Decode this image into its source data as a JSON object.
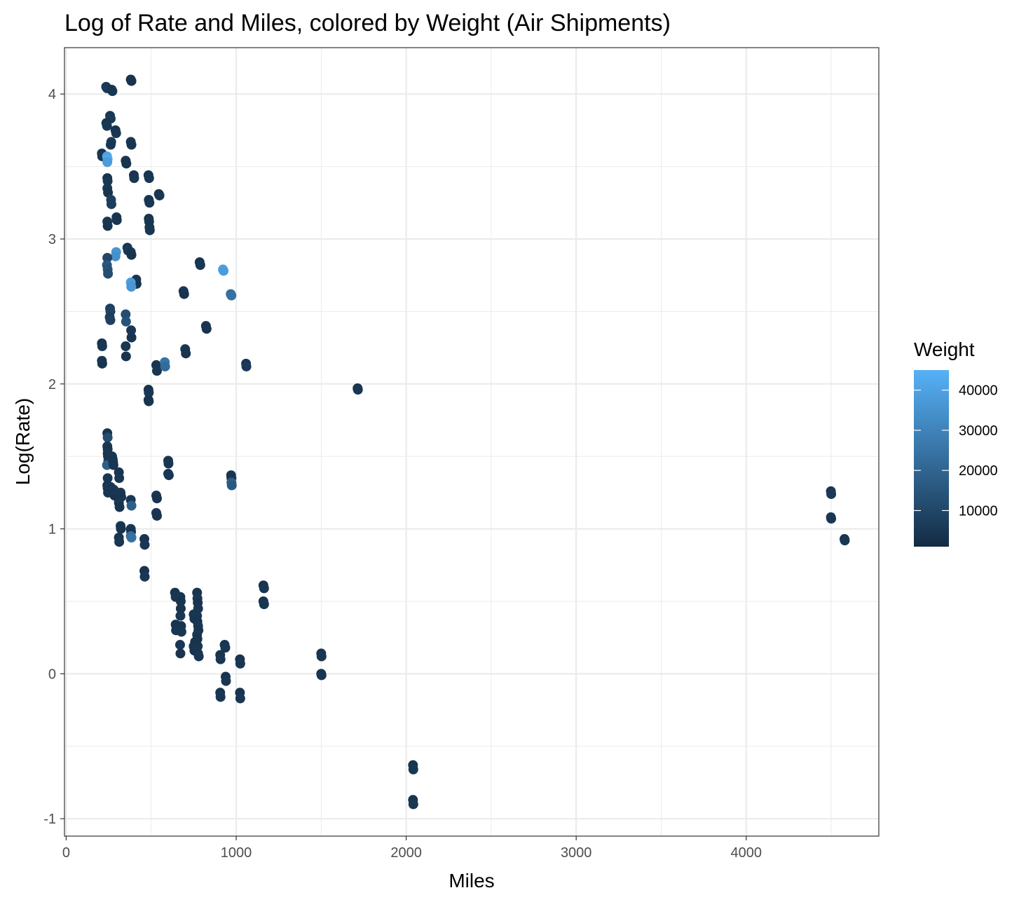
{
  "chart_data": {
    "type": "scatter",
    "title": "Log of Rate and Miles, colored by Weight (Air Shipments)",
    "xlabel": "Miles",
    "ylabel": "Log(Rate)",
    "xlim": [
      -10,
      4780
    ],
    "ylim": [
      -1.12,
      4.32
    ],
    "x_ticks": [
      0,
      1000,
      2000,
      3000,
      4000
    ],
    "x_tick_labels": [
      "0",
      "1000",
      "2000",
      "3000",
      "4000"
    ],
    "y_ticks": [
      -1,
      0,
      1,
      2,
      3,
      4
    ],
    "y_tick_labels": [
      "-1",
      "0",
      "1",
      "2",
      "3",
      "4"
    ],
    "grid": true,
    "legend": {
      "title": "Weight",
      "position": "right",
      "type": "colorbar",
      "range": [
        1000,
        45000
      ],
      "ticks": [
        10000,
        20000,
        30000,
        40000
      ],
      "tick_labels": [
        "10000",
        "20000",
        "30000",
        "40000"
      ],
      "color_low": "#132B43",
      "color_high": "#56B1F7"
    },
    "colors": {
      "panel_border": "#333333",
      "grid": "#ebebeb",
      "tick_text": "#4d4d4d"
    },
    "points": [
      [
        235,
        4.05,
        5000
      ],
      [
        240,
        4.04,
        6000
      ],
      [
        268,
        4.03,
        4000
      ],
      [
        272,
        4.02,
        5000
      ],
      [
        380,
        4.1,
        3000
      ],
      [
        384,
        4.09,
        4000
      ],
      [
        258,
        3.85,
        5000
      ],
      [
        262,
        3.83,
        6000
      ],
      [
        236,
        3.8,
        4000
      ],
      [
        240,
        3.78,
        5000
      ],
      [
        290,
        3.75,
        4000
      ],
      [
        294,
        3.73,
        5000
      ],
      [
        265,
        3.67,
        6000
      ],
      [
        262,
        3.65,
        5000
      ],
      [
        380,
        3.67,
        5000
      ],
      [
        384,
        3.65,
        4000
      ],
      [
        210,
        3.59,
        4000
      ],
      [
        212,
        3.57,
        5000
      ],
      [
        240,
        3.57,
        40000
      ],
      [
        244,
        3.55,
        42000
      ],
      [
        242,
        3.53,
        38000
      ],
      [
        350,
        3.54,
        5000
      ],
      [
        354,
        3.52,
        4000
      ],
      [
        242,
        3.42,
        4000
      ],
      [
        244,
        3.4,
        5000
      ],
      [
        398,
        3.44,
        4000
      ],
      [
        400,
        3.42,
        5000
      ],
      [
        484,
        3.44,
        4000
      ],
      [
        488,
        3.42,
        5000
      ],
      [
        242,
        3.35,
        5000
      ],
      [
        246,
        3.32,
        4000
      ],
      [
        545,
        3.31,
        4000
      ],
      [
        549,
        3.3,
        5000
      ],
      [
        264,
        3.27,
        8000
      ],
      [
        266,
        3.24,
        7000
      ],
      [
        486,
        3.27,
        4000
      ],
      [
        490,
        3.25,
        5000
      ],
      [
        296,
        3.15,
        5000
      ],
      [
        298,
        3.13,
        4000
      ],
      [
        242,
        3.12,
        5000
      ],
      [
        244,
        3.09,
        4000
      ],
      [
        486,
        3.14,
        4000
      ],
      [
        488,
        3.12,
        5000
      ],
      [
        490,
        3.08,
        4000
      ],
      [
        492,
        3.06,
        5000
      ],
      [
        360,
        2.94,
        5000
      ],
      [
        364,
        2.92,
        6000
      ],
      [
        380,
        2.91,
        5000
      ],
      [
        384,
        2.89,
        4000
      ],
      [
        294,
        2.91,
        36000
      ],
      [
        290,
        2.88,
        34000
      ],
      [
        242,
        2.87,
        10000
      ],
      [
        240,
        2.82,
        15000
      ],
      [
        244,
        2.79,
        14000
      ],
      [
        246,
        2.76,
        12000
      ],
      [
        785,
        2.84,
        4000
      ],
      [
        789,
        2.82,
        5000
      ],
      [
        922,
        2.79,
        40000
      ],
      [
        926,
        2.78,
        38000
      ],
      [
        412,
        2.72,
        5000
      ],
      [
        414,
        2.69,
        4000
      ],
      [
        380,
        2.7,
        38000
      ],
      [
        383,
        2.67,
        36000
      ],
      [
        690,
        2.64,
        5000
      ],
      [
        694,
        2.62,
        4000
      ],
      [
        968,
        2.62,
        22000
      ],
      [
        972,
        2.61,
        24000
      ],
      [
        258,
        2.52,
        8000
      ],
      [
        260,
        2.5,
        9000
      ],
      [
        256,
        2.46,
        7000
      ],
      [
        260,
        2.44,
        8000
      ],
      [
        350,
        2.48,
        12000
      ],
      [
        352,
        2.43,
        14000
      ],
      [
        382,
        2.37,
        5000
      ],
      [
        384,
        2.32,
        4000
      ],
      [
        822,
        2.4,
        5000
      ],
      [
        826,
        2.38,
        4000
      ],
      [
        210,
        2.28,
        4000
      ],
      [
        212,
        2.26,
        5000
      ],
      [
        350,
        2.26,
        5000
      ],
      [
        352,
        2.19,
        4000
      ],
      [
        700,
        2.24,
        5000
      ],
      [
        704,
        2.21,
        4000
      ],
      [
        210,
        2.16,
        5000
      ],
      [
        212,
        2.14,
        4000
      ],
      [
        530,
        2.13,
        4000
      ],
      [
        534,
        2.09,
        5000
      ],
      [
        580,
        2.15,
        25000
      ],
      [
        582,
        2.12,
        22000
      ],
      [
        1058,
        2.14,
        5000
      ],
      [
        1060,
        2.12,
        6000
      ],
      [
        484,
        1.96,
        4000
      ],
      [
        486,
        1.94,
        5000
      ],
      [
        484,
        1.89,
        5000
      ],
      [
        486,
        1.88,
        4000
      ],
      [
        1714,
        1.97,
        4000
      ],
      [
        1716,
        1.96,
        5000
      ],
      [
        242,
        1.66,
        4000
      ],
      [
        244,
        1.63,
        12000
      ],
      [
        242,
        1.57,
        5000
      ],
      [
        244,
        1.55,
        4000
      ],
      [
        244,
        1.52,
        5000
      ],
      [
        246,
        1.5,
        4000
      ],
      [
        248,
        1.47,
        5000
      ],
      [
        240,
        1.44,
        18000
      ],
      [
        270,
        1.5,
        5000
      ],
      [
        274,
        1.48,
        4000
      ],
      [
        276,
        1.46,
        5000
      ],
      [
        278,
        1.44,
        5000
      ],
      [
        600,
        1.47,
        4000
      ],
      [
        602,
        1.45,
        5000
      ],
      [
        600,
        1.38,
        4000
      ],
      [
        604,
        1.37,
        5000
      ],
      [
        310,
        1.39,
        4000
      ],
      [
        312,
        1.35,
        5000
      ],
      [
        970,
        1.37,
        5000
      ],
      [
        972,
        1.35,
        4000
      ],
      [
        972,
        1.32,
        18000
      ],
      [
        974,
        1.3,
        16000
      ],
      [
        244,
        1.35,
        5000
      ],
      [
        242,
        1.3,
        4000
      ],
      [
        244,
        1.28,
        5000
      ],
      [
        246,
        1.25,
        4000
      ],
      [
        260,
        1.29,
        6000
      ],
      [
        262,
        1.26,
        5000
      ],
      [
        268,
        1.28,
        4000
      ],
      [
        272,
        1.25,
        5000
      ],
      [
        280,
        1.27,
        5000
      ],
      [
        284,
        1.23,
        4000
      ],
      [
        296,
        1.24,
        5000
      ],
      [
        300,
        1.22,
        4000
      ],
      [
        320,
        1.25,
        5000
      ],
      [
        324,
        1.22,
        4000
      ],
      [
        310,
        1.18,
        5000
      ],
      [
        314,
        1.15,
        4000
      ],
      [
        530,
        1.23,
        5000
      ],
      [
        534,
        1.21,
        4000
      ],
      [
        530,
        1.11,
        5000
      ],
      [
        534,
        1.09,
        4000
      ],
      [
        380,
        1.2,
        5000
      ],
      [
        384,
        1.16,
        18000
      ],
      [
        320,
        1.02,
        5000
      ],
      [
        322,
        1.0,
        4000
      ],
      [
        380,
        1.0,
        5000
      ],
      [
        382,
        0.98,
        4000
      ],
      [
        310,
        0.94,
        4000
      ],
      [
        312,
        0.91,
        5000
      ],
      [
        380,
        0.95,
        22000
      ],
      [
        384,
        0.94,
        24000
      ],
      [
        460,
        0.93,
        4000
      ],
      [
        462,
        0.89,
        5000
      ],
      [
        460,
        0.71,
        4000
      ],
      [
        462,
        0.67,
        5000
      ],
      [
        640,
        0.56,
        4000
      ],
      [
        644,
        0.53,
        5000
      ],
      [
        672,
        0.53,
        5000
      ],
      [
        674,
        0.5,
        4000
      ],
      [
        644,
        0.34,
        4000
      ],
      [
        646,
        0.3,
        5000
      ],
      [
        672,
        0.4,
        5000
      ],
      [
        674,
        0.45,
        4000
      ],
      [
        676,
        0.33,
        4000
      ],
      [
        678,
        0.29,
        5000
      ],
      [
        670,
        0.2,
        5000
      ],
      [
        672,
        0.14,
        4000
      ],
      [
        770,
        0.56,
        4000
      ],
      [
        772,
        0.52,
        5000
      ],
      [
        774,
        0.49,
        4000
      ],
      [
        776,
        0.45,
        5000
      ],
      [
        750,
        0.41,
        5000
      ],
      [
        754,
        0.38,
        4000
      ],
      [
        770,
        0.4,
        5000
      ],
      [
        772,
        0.36,
        4000
      ],
      [
        776,
        0.33,
        5000
      ],
      [
        778,
        0.3,
        4000
      ],
      [
        770,
        0.27,
        5000
      ],
      [
        772,
        0.24,
        4000
      ],
      [
        750,
        0.19,
        5000
      ],
      [
        754,
        0.16,
        4000
      ],
      [
        774,
        0.19,
        5000
      ],
      [
        776,
        0.14,
        4000
      ],
      [
        780,
        0.12,
        5000
      ],
      [
        758,
        0.22,
        4000
      ],
      [
        1160,
        0.61,
        4000
      ],
      [
        1164,
        0.59,
        5000
      ],
      [
        1160,
        0.5,
        4000
      ],
      [
        1164,
        0.48,
        5000
      ],
      [
        932,
        0.2,
        4000
      ],
      [
        936,
        0.18,
        5000
      ],
      [
        906,
        0.13,
        4000
      ],
      [
        908,
        0.1,
        5000
      ],
      [
        1022,
        0.1,
        4000
      ],
      [
        1024,
        0.07,
        5000
      ],
      [
        1500,
        0.14,
        4000
      ],
      [
        1502,
        0.12,
        5000
      ],
      [
        938,
        -0.02,
        4000
      ],
      [
        940,
        -0.05,
        5000
      ],
      [
        906,
        -0.13,
        4000
      ],
      [
        908,
        -0.16,
        5000
      ],
      [
        1022,
        -0.13,
        4000
      ],
      [
        1024,
        -0.17,
        5000
      ],
      [
        1500,
        0.0,
        4000
      ],
      [
        1502,
        -0.01,
        5000
      ],
      [
        2040,
        -0.63,
        4000
      ],
      [
        2042,
        -0.66,
        5000
      ],
      [
        2040,
        -0.87,
        4000
      ],
      [
        2042,
        -0.9,
        5000
      ],
      [
        4498,
        1.26,
        5000
      ],
      [
        4500,
        1.24,
        6000
      ],
      [
        4498,
        1.08,
        4000
      ],
      [
        4500,
        1.07,
        5000
      ],
      [
        4578,
        0.93,
        4000
      ],
      [
        4580,
        0.92,
        5000
      ]
    ]
  }
}
